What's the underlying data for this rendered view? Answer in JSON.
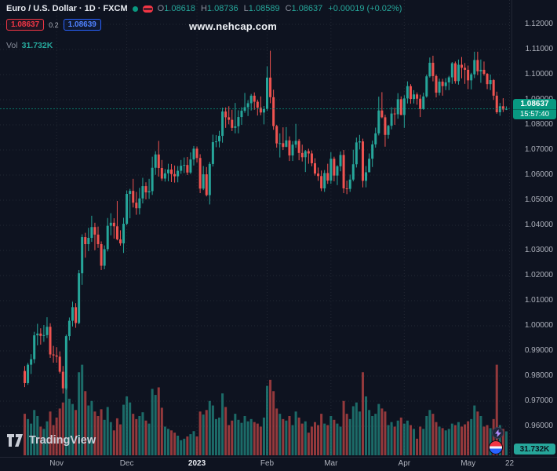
{
  "header": {
    "symbol_title": "Euro / U.S. Dollar · 1D · FXCM",
    "ohlc": {
      "o_label": "O",
      "o_value": "1.08618",
      "h_label": "H",
      "h_value": "1.08736",
      "l_label": "L",
      "l_value": "1.08589",
      "c_label": "C",
      "c_value": "1.08637",
      "change": "+0.00019 (+0.02%)"
    },
    "bid": "1.08637",
    "spread": "0.2",
    "ask": "1.08639",
    "vol_label": "Vol",
    "vol_value": "31.732K"
  },
  "watermark": "www.nehcap.com",
  "price_scale": {
    "labels": [
      "1.12000",
      "1.11000",
      "1.10000",
      "1.09000",
      "1.08000",
      "1.07000",
      "1.06000",
      "1.05000",
      "1.04000",
      "1.03000",
      "1.02000",
      "1.01000",
      "1.00000",
      "0.99000",
      "0.98000",
      "0.97000",
      "0.96000"
    ],
    "last_price": "1.08637",
    "countdown": "15:57:40",
    "volume_badge": "31.732K"
  },
  "footer": {
    "logo_text": "TradingView"
  },
  "colors": {
    "up": "#26a69a",
    "down": "#ef5350",
    "vol_up": "rgba(38,166,154,0.6)",
    "vol_down": "rgba(239,83,80,0.6)",
    "accent": "#089981",
    "grid": "rgba(255,255,255,0.09)",
    "bid": "#f23645",
    "ask": "#2962ff"
  },
  "chart_data": {
    "type": "candlestick",
    "pair": "Euro / U.S. Dollar",
    "interval": "1D",
    "exchange": "FXCM",
    "y_axis": {
      "min": 0.96,
      "max": 1.12,
      "step": 0.01
    },
    "ticks": [
      {
        "label": "Nov",
        "index": 10
      },
      {
        "label": "Dec",
        "index": 32
      },
      {
        "label": "2023",
        "index": 54,
        "strong": true
      },
      {
        "label": "Feb",
        "index": 76
      },
      {
        "label": "Mar",
        "index": 96
      },
      {
        "label": "Apr",
        "index": 119
      },
      {
        "label": "May",
        "index": 139
      },
      {
        "label": "22",
        "index": 152
      }
    ],
    "volume_unit": "K",
    "volume_scale_max": 130,
    "last_close": 1.08637,
    "candles": [
      [
        0.982,
        0.984,
        0.9756,
        0.9772,
        55
      ],
      [
        0.9772,
        0.9852,
        0.9765,
        0.9845,
        48
      ],
      [
        0.9845,
        0.9887,
        0.9808,
        0.9867,
        42
      ],
      [
        0.9867,
        0.9976,
        0.9851,
        0.9962,
        60
      ],
      [
        0.9962,
        1.0008,
        0.9922,
        0.9969,
        52
      ],
      [
        0.9969,
        0.999,
        0.9925,
        0.996,
        38
      ],
      [
        0.996,
        1.0003,
        0.9936,
        0.9963,
        35
      ],
      [
        0.9963,
        1.0034,
        0.9951,
        0.9996,
        45
      ],
      [
        0.9996,
        1.001,
        0.9872,
        0.9886,
        58
      ],
      [
        0.9886,
        0.992,
        0.9853,
        0.9882,
        40
      ],
      [
        0.9882,
        0.9915,
        0.9853,
        0.9877,
        50
      ],
      [
        0.9877,
        0.9898,
        0.981,
        0.9817,
        62
      ],
      [
        0.9817,
        0.984,
        0.973,
        0.9751,
        70
      ],
      [
        0.9751,
        0.9965,
        0.9745,
        0.9959,
        95
      ],
      [
        0.9959,
        1.0033,
        0.9942,
        1.002,
        75
      ],
      [
        1.002,
        1.0096,
        0.9997,
        1.0074,
        68
      ],
      [
        1.0074,
        1.009,
        0.9992,
        1.0011,
        60
      ],
      [
        1.0011,
        1.0222,
        1.0006,
        1.0209,
        110
      ],
      [
        1.0209,
        1.0364,
        1.0163,
        1.0353,
        120
      ],
      [
        1.0353,
        1.037,
        1.0271,
        1.0325,
        85
      ],
      [
        1.0325,
        1.039,
        1.0297,
        1.035,
        66
      ],
      [
        1.035,
        1.0438,
        1.0334,
        1.0393,
        72
      ],
      [
        1.0393,
        1.041,
        1.0301,
        1.0363,
        58
      ],
      [
        1.0363,
        1.0395,
        1.031,
        1.0325,
        52
      ],
      [
        1.0325,
        1.0336,
        1.0222,
        1.0239,
        61
      ],
      [
        1.0239,
        1.032,
        1.0225,
        1.0305,
        47
      ],
      [
        1.0305,
        1.0429,
        1.0296,
        1.0398,
        64
      ],
      [
        1.0398,
        1.0448,
        1.036,
        1.041,
        44
      ],
      [
        1.041,
        1.0428,
        1.0347,
        1.0396,
        33
      ],
      [
        1.0396,
        1.0497,
        1.034,
        1.0344,
        49
      ],
      [
        1.0344,
        1.038,
        1.0319,
        1.0328,
        41
      ],
      [
        1.0328,
        1.043,
        1.029,
        1.0406,
        67
      ],
      [
        1.0406,
        1.0539,
        1.04,
        1.0525,
        78
      ],
      [
        1.0525,
        1.0545,
        1.0428,
        1.0537,
        70
      ],
      [
        1.0537,
        1.0585,
        1.0471,
        1.049,
        55
      ],
      [
        1.049,
        1.0533,
        1.0442,
        1.0468,
        48
      ],
      [
        1.0468,
        1.0549,
        1.0443,
        1.0507,
        52
      ],
      [
        1.0507,
        1.0589,
        1.0487,
        1.0556,
        57
      ],
      [
        1.0556,
        1.0571,
        1.0503,
        1.0531,
        46
      ],
      [
        1.0531,
        1.0585,
        1.0505,
        1.0536,
        42
      ],
      [
        1.0536,
        1.0673,
        1.0521,
        1.0629,
        88
      ],
      [
        1.0629,
        1.0695,
        1.0601,
        1.0682,
        80
      ],
      [
        1.0682,
        1.0736,
        1.0594,
        1.0628,
        90
      ],
      [
        1.0628,
        1.066,
        1.0577,
        1.0586,
        63
      ],
      [
        1.0586,
        1.0624,
        1.0574,
        1.0607,
        38
      ],
      [
        1.0607,
        1.0645,
        1.0575,
        1.0622,
        35
      ],
      [
        1.0622,
        1.0644,
        1.0572,
        1.0604,
        33
      ],
      [
        1.0604,
        1.0638,
        1.057,
        1.0595,
        30
      ],
      [
        1.0595,
        1.0636,
        1.0571,
        1.0617,
        26
      ],
      [
        1.0617,
        1.066,
        1.0605,
        1.0637,
        20
      ],
      [
        1.0637,
        1.067,
        1.0608,
        1.064,
        22
      ],
      [
        1.064,
        1.0672,
        1.06,
        1.061,
        25
      ],
      [
        1.061,
        1.069,
        1.0604,
        1.0662,
        28
      ],
      [
        1.0662,
        1.0716,
        1.0638,
        1.0705,
        32
      ],
      [
        1.0705,
        1.0714,
        1.065,
        1.0668,
        25
      ],
      [
        1.0668,
        1.0683,
        1.0528,
        1.0546,
        58
      ],
      [
        1.0546,
        1.0636,
        1.054,
        1.0603,
        54
      ],
      [
        1.0603,
        1.0632,
        1.0515,
        1.052,
        60
      ],
      [
        1.052,
        1.0652,
        1.0483,
        1.0644,
        72
      ],
      [
        1.0644,
        1.0761,
        1.0634,
        1.0731,
        66
      ],
      [
        1.0731,
        1.0759,
        1.0711,
        1.0734,
        48
      ],
      [
        1.0734,
        1.0776,
        1.071,
        1.0756,
        50
      ],
      [
        1.0756,
        1.0868,
        1.0729,
        1.0853,
        82
      ],
      [
        1.0853,
        1.0869,
        1.0788,
        1.083,
        64
      ],
      [
        1.083,
        1.0874,
        1.0802,
        1.082,
        40
      ],
      [
        1.082,
        1.086,
        1.0775,
        1.0788,
        46
      ],
      [
        1.0788,
        1.0887,
        1.0766,
        1.0794,
        55
      ],
      [
        1.0794,
        1.0858,
        1.0766,
        1.0831,
        47
      ],
      [
        1.0831,
        1.087,
        1.08,
        1.0856,
        43
      ],
      [
        1.0856,
        1.0927,
        1.0848,
        1.087,
        52
      ],
      [
        1.087,
        1.0898,
        1.0835,
        1.0886,
        45
      ],
      [
        1.0886,
        1.0923,
        1.0857,
        1.0916,
        48
      ],
      [
        1.0916,
        1.0929,
        1.086,
        1.0892,
        44
      ],
      [
        1.0892,
        1.09,
        1.0837,
        1.0868,
        42
      ],
      [
        1.0868,
        1.0913,
        1.0838,
        1.0849,
        38
      ],
      [
        1.0849,
        1.0875,
        1.0802,
        1.0863,
        50
      ],
      [
        1.0863,
        1.1033,
        1.0855,
        1.0988,
        92
      ],
      [
        1.0988,
        1.1095,
        1.0886,
        1.091,
        100
      ],
      [
        1.091,
        1.094,
        1.078,
        1.0795,
        85
      ],
      [
        1.0795,
        1.08,
        1.0709,
        1.0726,
        62
      ],
      [
        1.0726,
        1.0766,
        1.067,
        1.0727,
        55
      ],
      [
        1.0727,
        1.079,
        1.07,
        1.0712,
        48
      ],
      [
        1.0712,
        1.0791,
        1.0711,
        1.0738,
        46
      ],
      [
        1.0738,
        1.0754,
        1.0656,
        1.0678,
        52
      ],
      [
        1.0678,
        1.0735,
        1.0656,
        1.0721,
        40
      ],
      [
        1.0721,
        1.0804,
        1.0708,
        1.0736,
        58
      ],
      [
        1.0736,
        1.0744,
        1.0659,
        1.0688,
        50
      ],
      [
        1.0688,
        1.0721,
        1.0654,
        1.0671,
        42
      ],
      [
        1.0671,
        1.07,
        1.0612,
        1.0695,
        45
      ],
      [
        1.0695,
        1.0705,
        1.0645,
        1.0686,
        30
      ],
      [
        1.0686,
        1.0698,
        1.0635,
        1.0647,
        38
      ],
      [
        1.0647,
        1.0667,
        1.0598,
        1.0606,
        44
      ],
      [
        1.0606,
        1.063,
        1.0577,
        1.0596,
        40
      ],
      [
        1.0596,
        1.0618,
        1.0536,
        1.0547,
        55
      ],
      [
        1.0547,
        1.062,
        1.0533,
        1.0608,
        42
      ],
      [
        1.0608,
        1.0645,
        1.0565,
        1.0578,
        40
      ],
      [
        1.0578,
        1.0691,
        1.0565,
        1.0665,
        52
      ],
      [
        1.0665,
        1.0673,
        1.0575,
        1.0598,
        47
      ],
      [
        1.0598,
        1.0639,
        1.056,
        1.0635,
        42
      ],
      [
        1.0635,
        1.0694,
        1.0615,
        1.068,
        38
      ],
      [
        1.068,
        1.07,
        1.0528,
        1.0547,
        72
      ],
      [
        1.0547,
        1.0578,
        1.0524,
        1.0545,
        55
      ],
      [
        1.0545,
        1.0602,
        1.0533,
        1.0582,
        48
      ],
      [
        1.0582,
        1.0701,
        1.0575,
        1.0643,
        65
      ],
      [
        1.0643,
        1.0749,
        1.063,
        1.073,
        70
      ],
      [
        1.073,
        1.076,
        1.0702,
        1.0734,
        58
      ],
      [
        1.0734,
        1.0745,
        1.0551,
        1.0577,
        110
      ],
      [
        1.0577,
        1.0636,
        1.0551,
        1.0611,
        78
      ],
      [
        1.0611,
        1.0686,
        1.0611,
        1.0665,
        60
      ],
      [
        1.0665,
        1.0737,
        1.0632,
        1.0722,
        52
      ],
      [
        1.0722,
        1.0789,
        1.0709,
        1.0766,
        55
      ],
      [
        1.0766,
        1.0912,
        1.0758,
        1.0857,
        68
      ],
      [
        1.0857,
        1.093,
        1.0826,
        1.083,
        62
      ],
      [
        1.083,
        1.084,
        1.0713,
        1.076,
        58
      ],
      [
        1.076,
        1.08,
        1.0745,
        1.0796,
        40
      ],
      [
        1.0796,
        1.087,
        1.0782,
        1.0845,
        44
      ],
      [
        1.0845,
        1.0868,
        1.08,
        1.0842,
        38
      ],
      [
        1.0842,
        1.0926,
        1.0824,
        1.0902,
        46
      ],
      [
        1.0902,
        1.0913,
        1.0838,
        1.0839,
        50
      ],
      [
        1.0839,
        1.0918,
        1.0788,
        1.0905,
        42
      ],
      [
        1.0905,
        1.0973,
        1.0885,
        1.0954,
        46
      ],
      [
        1.0954,
        1.0962,
        1.0884,
        1.0903,
        40
      ],
      [
        1.0903,
        1.0938,
        1.0885,
        1.0921,
        35
      ],
      [
        1.0921,
        1.0929,
        1.088,
        1.0904,
        22
      ],
      [
        1.0904,
        1.092,
        1.0831,
        1.0863,
        38
      ],
      [
        1.0863,
        1.0928,
        1.086,
        1.0913,
        35
      ],
      [
        1.0913,
        1.1,
        1.0908,
        1.0993,
        52
      ],
      [
        1.0993,
        1.1068,
        1.0988,
        1.1047,
        60
      ],
      [
        1.1047,
        1.1075,
        1.0973,
        1.0994,
        55
      ],
      [
        1.0994,
        1.1,
        1.0909,
        1.0928,
        44
      ],
      [
        1.0928,
        1.0984,
        1.0917,
        1.0972,
        38
      ],
      [
        1.0972,
        1.0983,
        1.0916,
        1.0954,
        36
      ],
      [
        1.0954,
        1.0986,
        1.0938,
        1.0969,
        33
      ],
      [
        1.0969,
        1.0995,
        1.0938,
        1.0989,
        35
      ],
      [
        1.0989,
        1.105,
        1.0963,
        1.1045,
        42
      ],
      [
        1.1045,
        1.1052,
        1.0964,
        1.0974,
        40
      ],
      [
        1.0974,
        1.106,
        1.096,
        1.1039,
        44
      ],
      [
        1.1039,
        1.107,
        1.0985,
        1.1027,
        38
      ],
      [
        1.1027,
        1.1046,
        1.0963,
        1.1019,
        41
      ],
      [
        1.1019,
        1.1036,
        1.0942,
        1.0977,
        45
      ],
      [
        1.0977,
        1.1007,
        1.0941,
        1.1001,
        48
      ],
      [
        1.1001,
        1.1091,
        1.0986,
        1.1058,
        66
      ],
      [
        1.1058,
        1.1091,
        1.0998,
        1.1013,
        58
      ],
      [
        1.1013,
        1.106,
        1.0967,
        1.1019,
        52
      ],
      [
        1.1019,
        1.1052,
        1.0996,
        1.1003,
        38
      ],
      [
        1.1003,
        1.1006,
        1.0942,
        1.0962,
        40
      ],
      [
        1.0962,
        1.1,
        1.0938,
        1.0978,
        36
      ],
      [
        1.0978,
        1.0982,
        1.0899,
        1.0916,
        48
      ],
      [
        1.0916,
        1.0932,
        1.0844,
        1.085,
        120
      ],
      [
        1.085,
        1.0887,
        1.0836,
        1.0874,
        40
      ],
      [
        1.0874,
        1.0906,
        1.0851,
        1.0861,
        35
      ],
      [
        1.08618,
        1.08736,
        1.08589,
        1.08637,
        31.732
      ]
    ]
  }
}
